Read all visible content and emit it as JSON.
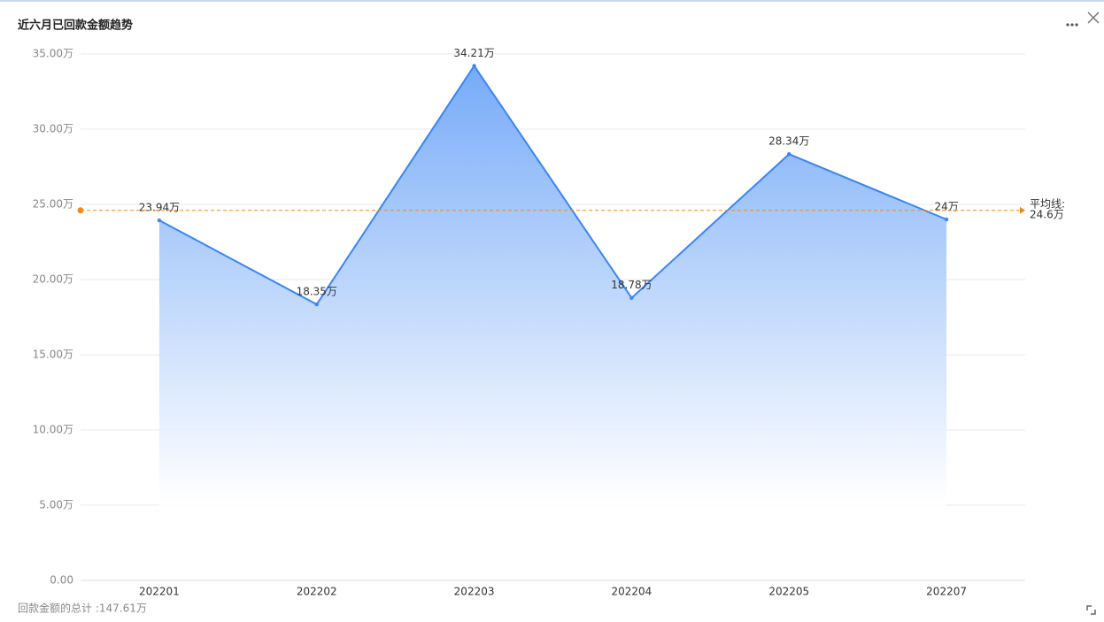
{
  "chart_data": {
    "type": "area-line",
    "title": "近六月已回款金额趋势",
    "categories": [
      "202201",
      "202202",
      "202203",
      "202204",
      "202205",
      "202207"
    ],
    "values": [
      23.94,
      18.35,
      34.21,
      18.78,
      28.34,
      24
    ],
    "value_labels": [
      "23.94万",
      "18.35万",
      "34.21万",
      "18.78万",
      "28.34万",
      "24万"
    ],
    "color": "#3a86f5",
    "ylim": [
      0,
      35
    ],
    "yticks": [
      {
        "value": 0,
        "label": "0.00"
      },
      {
        "value": 5,
        "label": "5.00万"
      },
      {
        "value": 10,
        "label": "10.00万"
      },
      {
        "value": 15,
        "label": "15.00万"
      },
      {
        "value": 20,
        "label": "20.00万"
      },
      {
        "value": 25,
        "label": "25.00万"
      },
      {
        "value": 30,
        "label": "30.00万"
      },
      {
        "value": 35,
        "label": "35.00万"
      }
    ],
    "grid": true,
    "average": {
      "label": "平均线:",
      "value": 24.6,
      "value_label": "24.6万",
      "color": "#f08a1c"
    },
    "footer": "回款金额的总计 :147.61万"
  }
}
